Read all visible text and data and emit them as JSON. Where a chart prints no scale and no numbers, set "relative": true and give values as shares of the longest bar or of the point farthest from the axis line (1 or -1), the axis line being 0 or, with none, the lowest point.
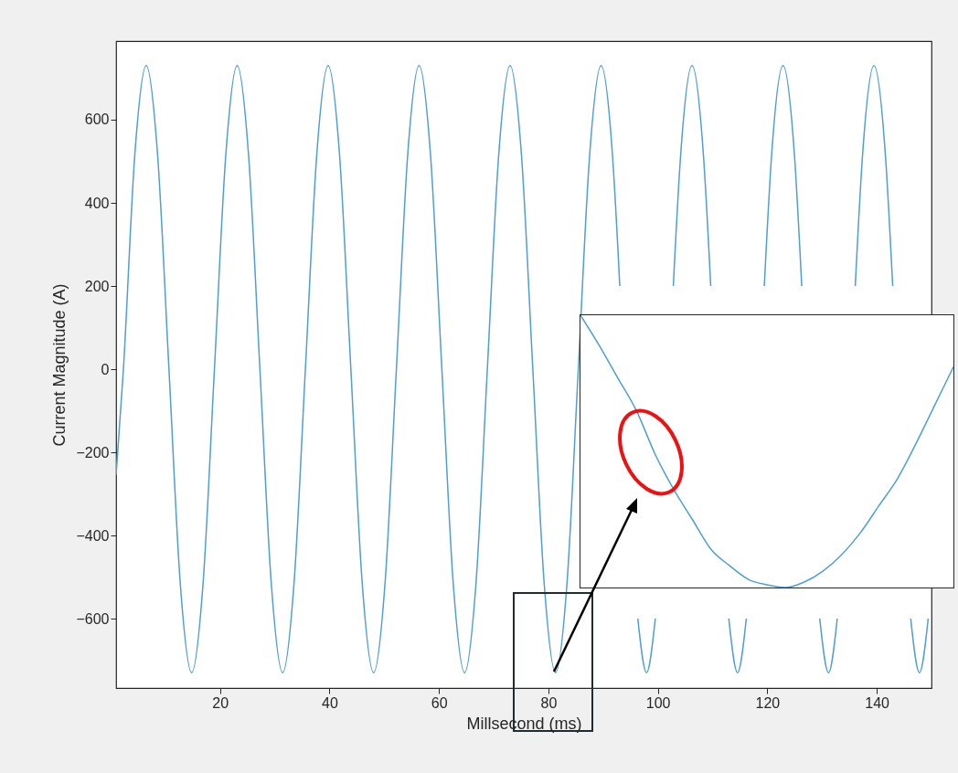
{
  "chart_data": [
    {
      "type": "line",
      "xlabel": "Millsecond (ms)",
      "ylabel": "Current Magnitude (A)",
      "xlim": [
        1,
        150
      ],
      "ylim": [
        -767,
        789
      ],
      "xticks": [
        20,
        40,
        60,
        80,
        100,
        120,
        140
      ],
      "yticks": [
        -600,
        -400,
        -200,
        0,
        200,
        400,
        600
      ],
      "grid": false,
      "legend": false,
      "line_style": "solid",
      "marker": "none",
      "x": [
        1,
        2.34,
        4.42,
        6.5,
        8.58,
        10.66,
        12.73,
        14.81,
        16.89,
        18.97,
        21.05,
        23.12,
        25.2,
        27.28,
        29.36,
        31.44,
        33.51,
        35.59,
        37.67,
        39.75,
        41.83,
        43.9,
        45.98,
        48.06,
        50.14,
        52.22,
        54.29,
        56.37,
        58.45,
        60.53,
        62.61,
        64.68,
        66.76,
        68.84,
        70.92,
        73.0,
        75.07,
        77.15,
        79.23,
        81.31,
        83.39,
        85.46,
        87.54,
        89.62,
        91.7,
        93.04,
        95,
        96.33,
        97.93,
        99.53,
        101,
        102.82,
        104.17,
        106.24,
        108.32,
        109.66,
        111,
        112.96,
        114.56,
        116.16,
        118,
        119.45,
        120.79,
        122.87,
        124.95,
        126.29,
        128,
        129.58,
        131.18,
        132.78,
        135,
        136.07,
        137.41,
        139.49,
        141.57,
        142.91,
        144.5,
        146.2,
        147.8,
        149.4
      ],
      "series": [
        {
          "color": "#4d9fd6",
          "values": [
            -255,
            0,
            516,
            730,
            516,
            0,
            -516,
            -730,
            -516,
            0,
            516,
            730,
            516,
            0,
            -516,
            -730,
            -516,
            0,
            516,
            730,
            516,
            0,
            -516,
            -730,
            -516,
            0,
            516,
            730,
            516,
            0,
            -516,
            -730,
            -516,
            0,
            516,
            730,
            516,
            0,
            -516,
            -730,
            -516,
            0,
            516,
            730,
            516,
            200,
            null,
            -600,
            -730,
            -600,
            null,
            200,
            516,
            730,
            516,
            200,
            null,
            -600,
            -730,
            -600,
            null,
            200,
            516,
            730,
            516,
            200,
            null,
            -600,
            -730,
            -600,
            null,
            200,
            516,
            730,
            516,
            200,
            null,
            -600,
            -730,
            -600
          ]
        }
      ]
    },
    {
      "type": "line",
      "relative": true,
      "marker": "none",
      "line_style": "solid",
      "categories": [
        null,
        null,
        null,
        null,
        null,
        null,
        null,
        null,
        null,
        null,
        null,
        null,
        null,
        null,
        null,
        null,
        null,
        null,
        null,
        null,
        null
      ],
      "series": [
        {
          "color": "#4d9fd6",
          "values": [
            1.0,
            0.89,
            0.77,
            0.65,
            0.49,
            0.36,
            0.25,
            0.14,
            0.08,
            0.03,
            0.01,
            0,
            0.02,
            0.06,
            0.12,
            0.2,
            0.3,
            0.4,
            0.53,
            0.67,
            0.81
          ]
        }
      ]
    }
  ]
}
